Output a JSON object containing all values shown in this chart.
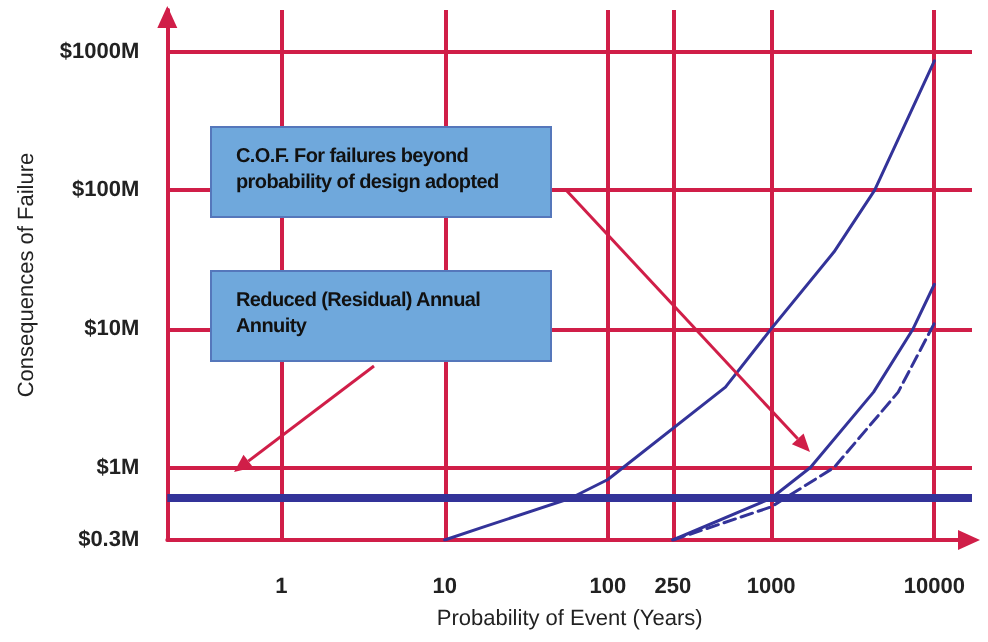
{
  "chart_data": {
    "type": "line",
    "xlabel": "Probability of Event (Years)",
    "ylabel": "Consequences of Failure",
    "log": "xy",
    "grid": true,
    "marker": "none",
    "xlim": [
      0.2,
      17000
    ],
    "xticks": [
      1,
      10,
      100,
      250,
      1000,
      10000
    ],
    "ylim": [
      0.3,
      2000
    ],
    "yticks": [
      {
        "value": 0.3,
        "label": "$0.3M"
      },
      {
        "value": 1,
        "label": "$1M"
      },
      {
        "value": 10,
        "label": "$10M"
      },
      {
        "value": 100,
        "label": "$100M"
      },
      {
        "value": 1000,
        "label": "$1000M"
      }
    ],
    "series": [
      {
        "color": "#333399",
        "line_style": "solid",
        "x": [
          10,
          17,
          59,
          100,
          525,
          1000,
          2430,
          4300,
          10000
        ],
        "values": [
          0.3,
          0.37,
          0.6,
          0.82,
          3.8,
          10,
          36,
          100,
          860
        ]
      },
      {
        "color": "#333399",
        "line_style": "solid",
        "x": [
          250,
          1000,
          1740,
          4240,
          7400,
          10000
        ],
        "values": [
          0.3,
          0.6,
          1,
          3.5,
          10,
          21
        ]
      },
      {
        "color": "#333399",
        "line_style": "dashed",
        "x": [
          250,
          1000,
          2430,
          6000,
          10000
        ],
        "values": [
          0.3,
          0.52,
          1,
          3.5,
          11
        ]
      }
    ],
    "ref_lines": [
      {
        "axis": "y",
        "value": 0.6,
        "color": "#333399"
      }
    ],
    "annotations": [
      "C.O.F. For failures beyond probability of design adopted",
      "Reduced (Residual) Annual Annuity"
    ]
  }
}
